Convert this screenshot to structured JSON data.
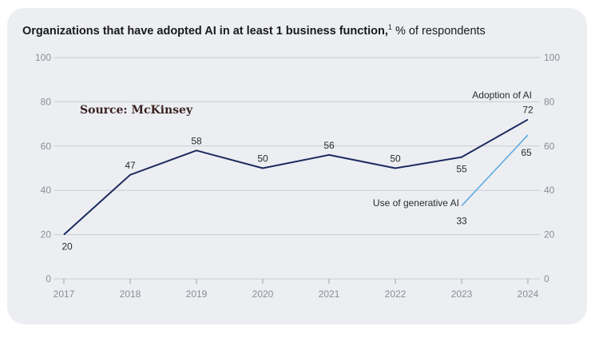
{
  "title": {
    "bold": "Organizations that have adopted AI in at least 1 business function,",
    "sup": "1",
    "rest": " % of respondents"
  },
  "source_note": "Source: McKinsey",
  "colors": {
    "adoption": "#1e2a5e",
    "generative": "#5aa9e0",
    "grid": "#c9ccd2",
    "card": "#eceef2"
  },
  "chart_data": {
    "type": "line",
    "title": "Organizations that have adopted AI in at least 1 business function, % of respondents",
    "xlabel": "",
    "ylabel": "",
    "categories": [
      "2017",
      "2018",
      "2019",
      "2020",
      "2021",
      "2022",
      "2023",
      "2024"
    ],
    "ylim": [
      0,
      100
    ],
    "yticks": [
      0,
      20,
      40,
      60,
      80,
      100
    ],
    "grid": true,
    "series": [
      {
        "name": "Adoption of AI",
        "x": [
          "2017",
          "2018",
          "2019",
          "2020",
          "2021",
          "2022",
          "2023",
          "2024"
        ],
        "values": [
          20,
          47,
          58,
          50,
          56,
          50,
          55,
          72
        ]
      },
      {
        "name": "Use of generative AI",
        "x": [
          "2023",
          "2024"
        ],
        "values": [
          33,
          65
        ]
      }
    ]
  }
}
